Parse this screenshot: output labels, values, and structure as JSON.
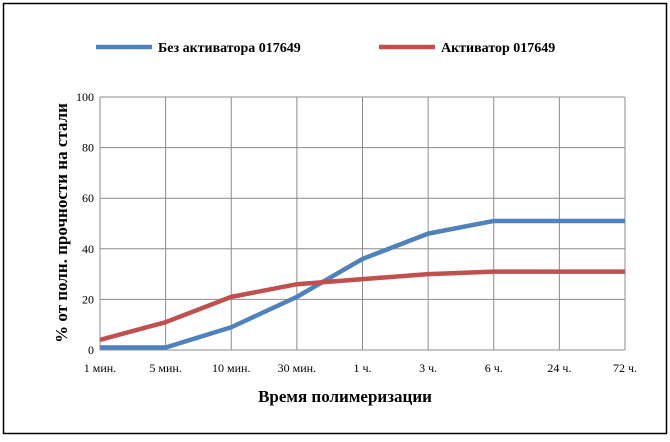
{
  "chart_data": {
    "type": "line",
    "categories": [
      "1 мин.",
      "5 мин.",
      "10 мин.",
      "30 мин.",
      "1 ч.",
      "3 ч.",
      "6 ч.",
      "24 ч.",
      "72 ч."
    ],
    "series": [
      {
        "name": "Без активатора 017649",
        "color": "#4f81bd",
        "values": [
          1,
          1,
          9,
          21,
          36,
          46,
          51,
          51,
          51
        ]
      },
      {
        "name": "Активатор 017649",
        "color": "#c0504d",
        "values": [
          4,
          11,
          21,
          26,
          28,
          30,
          31,
          31,
          31
        ]
      }
    ],
    "xlabel": "Время полимеризации",
    "ylabel": "% от полн. прочности на стали",
    "ylim": [
      0,
      100
    ],
    "yticks": [
      0,
      20,
      40,
      60,
      80,
      100
    ],
    "grid": true,
    "legend_position": "top"
  }
}
